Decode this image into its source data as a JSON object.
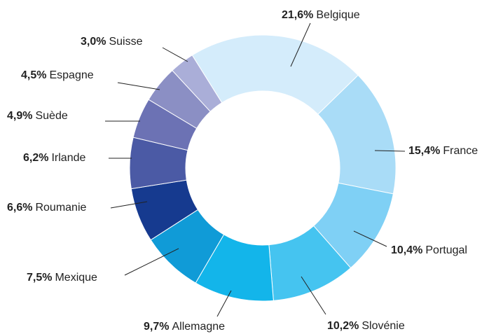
{
  "chart_data": {
    "type": "donut",
    "categories": [
      "Belgique",
      "France",
      "Portugal",
      "Slovénie",
      "Allemagne",
      "Mexique",
      "Roumanie",
      "Irlande",
      "Suède",
      "Espagne",
      "Suisse"
    ],
    "values": [
      21.6,
      15.4,
      10.4,
      10.2,
      9.7,
      7.5,
      6.6,
      6.2,
      4.9,
      4.5,
      3.0
    ],
    "value_labels": [
      "21,6%",
      "15,4%",
      "10,4%",
      "10,2%",
      "9,7%",
      "7,5%",
      "6,6%",
      "6,2%",
      "4,9%",
      "4,5%",
      "3,0%"
    ],
    "colors": [
      "#d4ecfb",
      "#a9dcf7",
      "#7fd0f5",
      "#45c4f0",
      "#13b5ea",
      "#109bd7",
      "#163a8f",
      "#4b5aa5",
      "#6c72b4",
      "#8b8fc4",
      "#aaaed8"
    ]
  }
}
